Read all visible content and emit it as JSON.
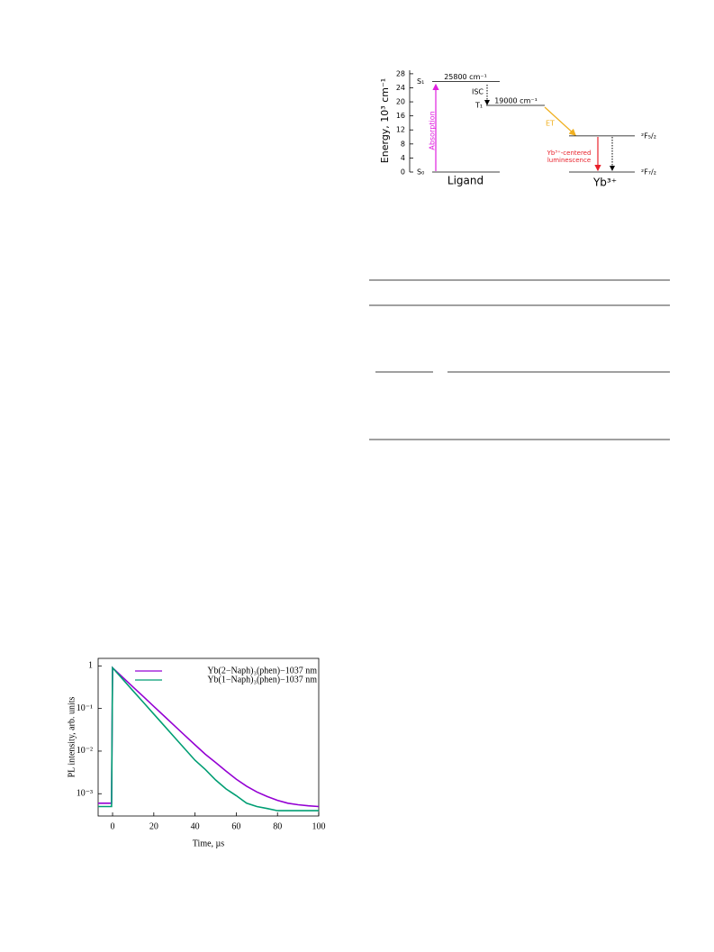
{
  "diagram": {
    "ylabel": "Energy, 10³ cm⁻¹",
    "ylim": [
      0,
      29
    ],
    "yticks": [
      0,
      4,
      8,
      12,
      16,
      20,
      24,
      28
    ],
    "levels": [
      {
        "label": "S₁",
        "energy": 25.8,
        "note": "25800 cm⁻¹"
      },
      {
        "label": "S₀",
        "energy": 0,
        "note": "Ligand"
      },
      {
        "label": "T₁",
        "energy": 19,
        "note": "19000 cm⁻¹"
      },
      {
        "label": "²F₅/₂",
        "energy": 10.3
      },
      {
        "label": "²F₇/₂",
        "energy": 0,
        "note": "Yb³⁺"
      }
    ],
    "isc": "ISC",
    "absorption": "Absorption",
    "et": "ET",
    "luminescence": [
      "Yb³⁺-centered",
      "luminescence"
    ]
  },
  "chart_data": {
    "type": "line",
    "xlabel": "Time, µs",
    "ylabel": "PL intensity, arb. units",
    "log_y": true,
    "legend": "top-right",
    "xlim": [
      -7,
      100
    ],
    "xticks": [
      0,
      20,
      40,
      60,
      80,
      100
    ],
    "ylim": [
      0.0003,
      1.5
    ],
    "yticks": [
      {
        "value": 1,
        "label": "1"
      },
      {
        "value": 0.1,
        "label": "10⁻¹"
      },
      {
        "value": 0.01,
        "label": "10⁻²"
      },
      {
        "value": 0.001,
        "label": "10⁻³"
      }
    ],
    "x": [
      -7,
      -0.5,
      0,
      5,
      10,
      15,
      20,
      25,
      30,
      35,
      40,
      45,
      50,
      55,
      60,
      65,
      70,
      75,
      80,
      85,
      90,
      95,
      100
    ],
    "series": [
      {
        "name": "Yb(2−Naph)₃(phen)−1037 nm",
        "color": "#9400d3",
        "values": [
          0.0006,
          0.0006,
          0.9,
          0.535,
          0.318,
          0.189,
          0.112,
          0.0665,
          0.0395,
          0.0235,
          0.014,
          0.0084,
          0.0054,
          0.0034,
          0.0022,
          0.0015,
          0.0011,
          0.00086,
          0.0007,
          0.0006,
          0.00055,
          0.00052,
          0.0005
        ]
      },
      {
        "name": "Yb(1−Naph)₃(phen)−1037 nm",
        "color": "#009e73",
        "values": [
          0.0005,
          0.0005,
          0.9,
          0.482,
          0.258,
          0.138,
          0.074,
          0.0395,
          0.0212,
          0.0113,
          0.0061,
          0.0037,
          0.0021,
          0.0013,
          0.0009,
          0.0006,
          0.0005,
          0.00045,
          0.0004,
          0.0004,
          0.0004,
          0.0004,
          0.0004
        ]
      }
    ]
  }
}
